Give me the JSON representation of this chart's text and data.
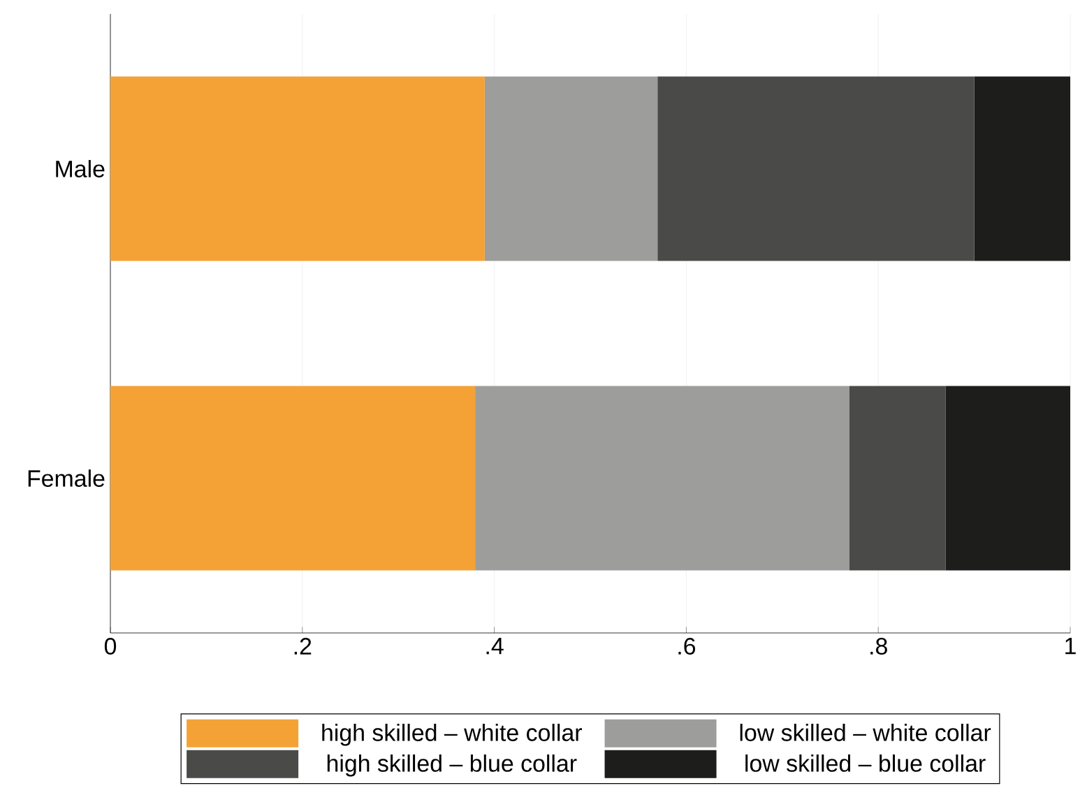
{
  "chart_data": {
    "type": "bar",
    "orientation": "horizontal",
    "stacked": true,
    "categories": [
      "Male",
      "Female"
    ],
    "series": [
      {
        "name": "high skilled – white collar",
        "color": "#f4a236",
        "values": [
          0.39,
          0.38
        ]
      },
      {
        "name": "low skilled – white collar",
        "color": "#9d9d9c",
        "values": [
          0.18,
          0.39
        ]
      },
      {
        "name": "high skilled – blue collar",
        "color": "#4a4a49",
        "values": [
          0.33,
          0.1
        ]
      },
      {
        "name": "low skilled – blue collar",
        "color": "#1d1d1b",
        "values": [
          0.1,
          0.13
        ]
      }
    ],
    "xlim": [
      0,
      1
    ],
    "xticks": [
      0,
      {
        "value": 0.2,
        "label": ".2"
      },
      {
        "value": 0.4,
        "label": ".4"
      },
      {
        "value": 0.6,
        "label": ".6"
      },
      {
        "value": 0.8,
        "label": ".8"
      },
      1
    ],
    "grid": "x",
    "legend": "bottom"
  }
}
